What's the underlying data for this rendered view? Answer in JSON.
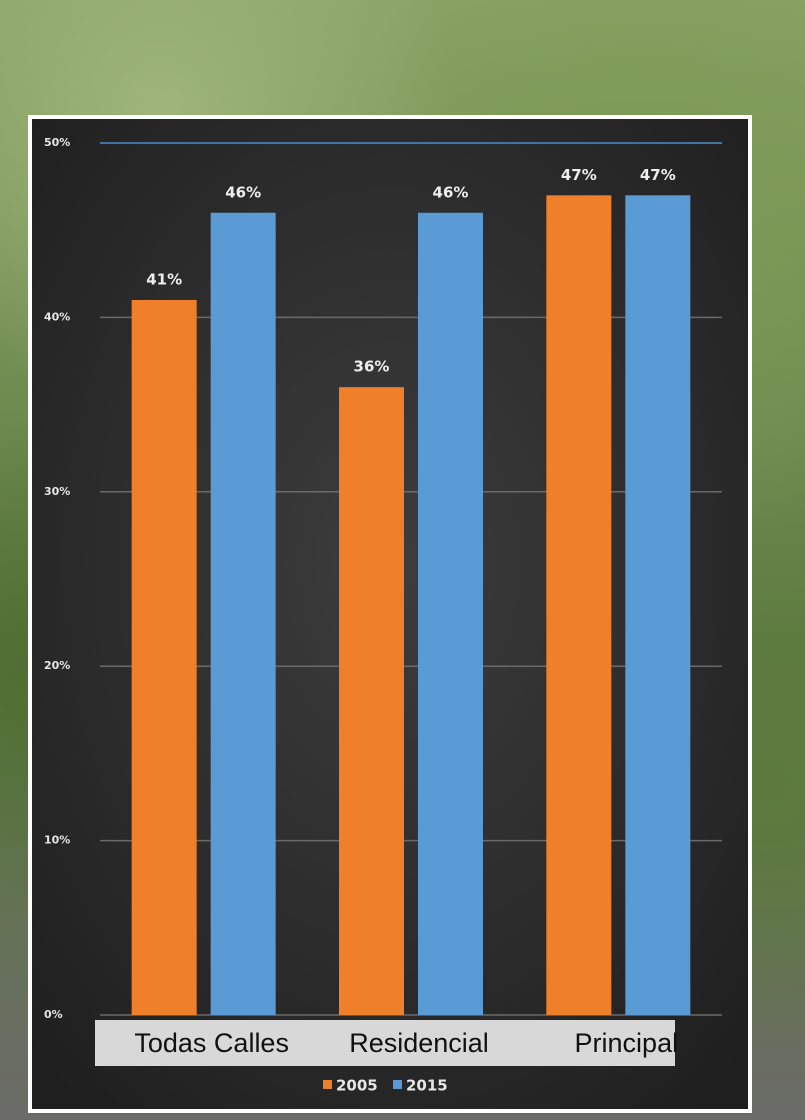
{
  "chart_data": {
    "type": "bar",
    "categories": [
      "Todas Calles",
      "Residencial",
      "Principal"
    ],
    "series": [
      {
        "name": "2005",
        "color": "#f07f2a",
        "values": [
          41,
          36,
          47
        ],
        "value_labels": [
          "41%",
          "36%",
          "47%"
        ]
      },
      {
        "name": "2015",
        "color": "#5b9bd5",
        "values": [
          46,
          46,
          47
        ],
        "value_labels": [
          "46%",
          "46%",
          "47%"
        ]
      }
    ],
    "ylim": [
      0,
      50
    ],
    "yticks": [
      {
        "value": 0,
        "label": "0%"
      },
      {
        "value": 10,
        "label": "10%"
      },
      {
        "value": 20,
        "label": "20%"
      },
      {
        "value": 30,
        "label": "30%"
      },
      {
        "value": 40,
        "label": "40%"
      },
      {
        "value": 50,
        "label": "50%"
      }
    ],
    "grid": true,
    "legend": "bottom"
  }
}
